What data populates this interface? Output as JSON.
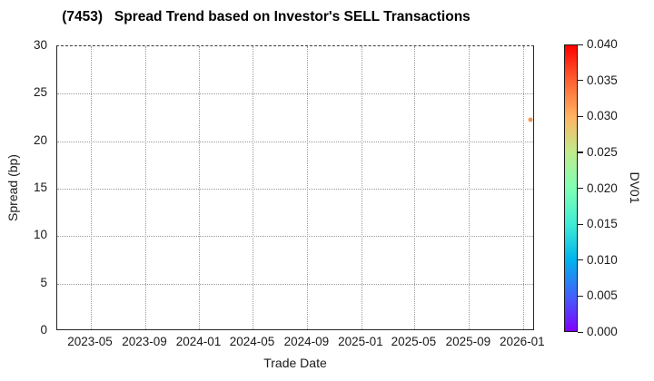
{
  "chart_data": {
    "type": "scatter",
    "title": "(7453)   Spread Trend based on Investor's SELL Transactions",
    "xlabel": "Trade Date",
    "ylabel": "Spread (bp)",
    "x_axis": {
      "type": "date",
      "min": "2023-02-14",
      "max": "2026-01-28",
      "ticks": [
        {
          "date": "2023-05-01",
          "label": "2023-05"
        },
        {
          "date": "2023-09-01",
          "label": "2023-09"
        },
        {
          "date": "2024-01-01",
          "label": "2024-01"
        },
        {
          "date": "2024-05-01",
          "label": "2024-05"
        },
        {
          "date": "2024-09-01",
          "label": "2024-09"
        },
        {
          "date": "2025-01-01",
          "label": "2025-01"
        },
        {
          "date": "2025-05-01",
          "label": "2025-05"
        },
        {
          "date": "2025-09-01",
          "label": "2025-09"
        },
        {
          "date": "2026-01-01",
          "label": "2026-01"
        }
      ]
    },
    "y_axis": {
      "min": 0,
      "max": 30,
      "ticks": [
        0,
        5,
        10,
        15,
        20,
        25,
        30
      ]
    },
    "grid": "dotted",
    "points": [
      {
        "date": "2026-01-18",
        "spread_bp": 22.3,
        "dv01": 0.032,
        "color": "#f7954e"
      }
    ],
    "colorbar": {
      "label": "DV01",
      "min": 0.0,
      "max": 0.04,
      "tick_labels": [
        "0.000",
        "0.005",
        "0.010",
        "0.015",
        "0.020",
        "0.025",
        "0.030",
        "0.035",
        "0.040"
      ],
      "colormap": "rainbow",
      "gradient_stops_bottom_to_top": [
        "#8000ff",
        "#4062fa",
        "#00b4ec",
        "#40ecd4",
        "#80ffb4",
        "#bfec8e",
        "#ffb462",
        "#ff6232",
        "#ff0000"
      ]
    },
    "colors": {
      "text": "#1a1a1a",
      "grid": "#999999",
      "frame": "#262626",
      "background": "#ffffff"
    }
  }
}
